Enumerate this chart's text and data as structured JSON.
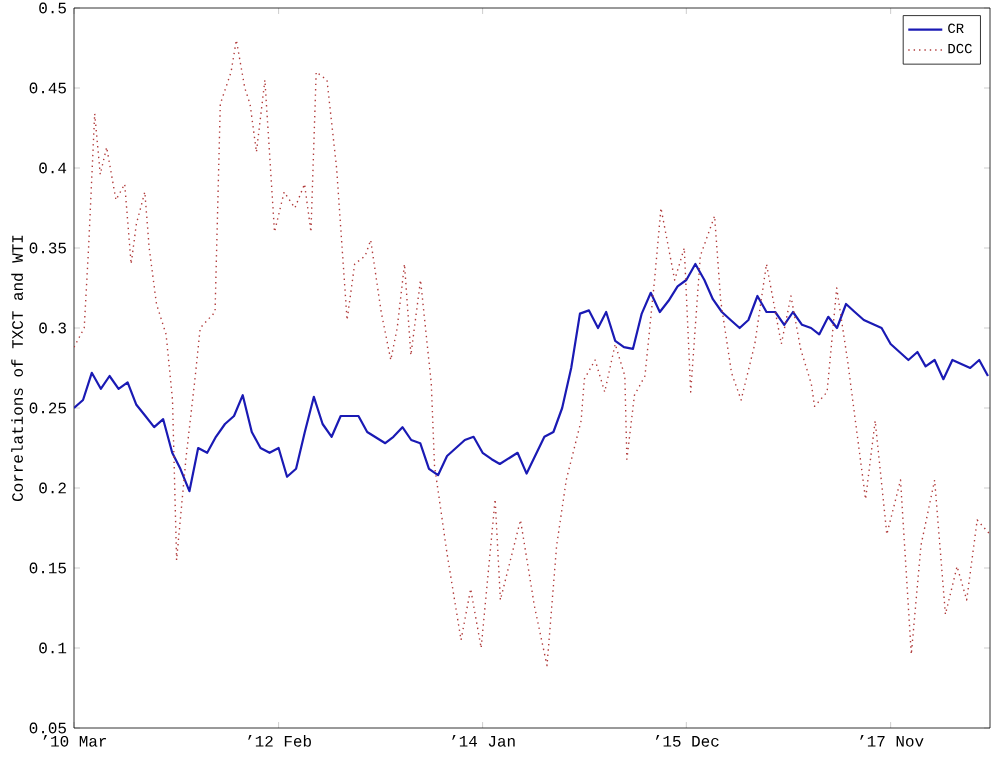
{
  "chart_data": {
    "type": "line",
    "ylabel": "Correlations of TXCT and WTI",
    "xlim": [
      "2010-03-01",
      "2018-10-08"
    ],
    "ylim": [
      0.05,
      0.5
    ],
    "xticks": [
      {
        "value": "2010-03-01",
        "label": "’10 Mar"
      },
      {
        "value": "2012-02-01",
        "label": "’12 Feb"
      },
      {
        "value": "2014-01-01",
        "label": "’14 Jan"
      },
      {
        "value": "2015-12-01",
        "label": "’15 Dec"
      },
      {
        "value": "2017-11-01",
        "label": "’17 Nov"
      }
    ],
    "yticks": [
      0.05,
      0.1,
      0.15,
      0.2,
      0.25,
      0.3,
      0.35,
      0.4,
      0.45,
      0.5
    ],
    "grid": false,
    "legend": "top right",
    "marker": "none",
    "series": [
      {
        "name": "CR",
        "color": "#1a1ab4",
        "line_style": "solid",
        "x": [
          "2010-03",
          "2010-04",
          "2010-05",
          "2010-06",
          "2010-07",
          "2010-08",
          "2010-09",
          "2010-10",
          "2010-11",
          "2010-12",
          "2011-01",
          "2011-02",
          "2011-03",
          "2011-04",
          "2011-05",
          "2011-06",
          "2011-07",
          "2011-08",
          "2011-09",
          "2011-10",
          "2011-11",
          "2011-12",
          "2012-01",
          "2012-02",
          "2012-03",
          "2012-04",
          "2012-05",
          "2012-06",
          "2012-07",
          "2012-08",
          "2012-09",
          "2012-11",
          "2012-12",
          "2013-02",
          "2013-03",
          "2013-04",
          "2013-05",
          "2013-06",
          "2013-07",
          "2013-08",
          "2013-09",
          "2013-11",
          "2013-12",
          "2014-01",
          "2014-02",
          "2014-03",
          "2014-05",
          "2014-06",
          "2014-08",
          "2014-09",
          "2014-10",
          "2014-11",
          "2014-12",
          "2015-01",
          "2015-02",
          "2015-03",
          "2015-04",
          "2015-05",
          "2015-06",
          "2015-07",
          "2015-08",
          "2015-09",
          "2015-10",
          "2015-11",
          "2015-12",
          "2016-01",
          "2016-02",
          "2016-03",
          "2016-04",
          "2016-05",
          "2016-06",
          "2016-07",
          "2016-08",
          "2016-09",
          "2016-10",
          "2016-11",
          "2016-12",
          "2017-01",
          "2017-02",
          "2017-03",
          "2017-04",
          "2017-05",
          "2017-06",
          "2017-07",
          "2017-08",
          "2017-10",
          "2017-11",
          "2018-01",
          "2018-02",
          "2018-03",
          "2018-04",
          "2018-05",
          "2018-06",
          "2018-08",
          "2018-09",
          "2018-10"
        ],
        "values": [
          0.25,
          0.255,
          0.272,
          0.262,
          0.27,
          0.262,
          0.266,
          0.252,
          0.245,
          0.238,
          0.243,
          0.222,
          0.212,
          0.198,
          0.225,
          0.222,
          0.232,
          0.24,
          0.245,
          0.258,
          0.235,
          0.225,
          0.222,
          0.225,
          0.207,
          0.212,
          0.235,
          0.257,
          0.24,
          0.232,
          0.245,
          0.245,
          0.235,
          0.228,
          0.232,
          0.238,
          0.23,
          0.228,
          0.212,
          0.208,
          0.22,
          0.23,
          0.232,
          0.222,
          0.218,
          0.215,
          0.222,
          0.209,
          0.232,
          0.235,
          0.25,
          0.275,
          0.309,
          0.311,
          0.3,
          0.31,
          0.292,
          0.288,
          0.287,
          0.309,
          0.322,
          0.31,
          0.317,
          0.326,
          0.33,
          0.34,
          0.33,
          0.318,
          0.31,
          0.305,
          0.3,
          0.305,
          0.32,
          0.31,
          0.31,
          0.302,
          0.31,
          0.302,
          0.3,
          0.296,
          0.307,
          0.3,
          0.315,
          0.31,
          0.305,
          0.3,
          0.29,
          0.28,
          0.285,
          0.276,
          0.28,
          0.268,
          0.28,
          0.275,
          0.28,
          0.27
        ]
      },
      {
        "name": "DCC",
        "color": "#b03a3a",
        "line_style": "dotted",
        "x": [
          "2010-03-01",
          "2010-04-05",
          "2010-04-20",
          "2010-05-11",
          "2010-05-30",
          "2010-06-21",
          "2010-07-23",
          "2010-08-22",
          "2010-09-13",
          "2010-10-01",
          "2010-10-30",
          "2010-11-14",
          "2010-12-09",
          "2011-01-11",
          "2011-02-02",
          "2011-02-16",
          "2011-03-21",
          "2011-04-20",
          "2011-05-08",
          "2011-06-28",
          "2011-07-16",
          "2011-08-22",
          "2011-09-09",
          "2011-10-08",
          "2011-10-26",
          "2011-11-17",
          "2011-12-16",
          "2012-01-18",
          "2012-02-20",
          "2012-03-28",
          "2012-04-30",
          "2012-05-22",
          "2012-06-09",
          "2012-07-16",
          "2012-08-18",
          "2012-09-23",
          "2012-10-19",
          "2012-11-24",
          "2012-12-13",
          "2013-01-18",
          "2013-02-20",
          "2013-03-14",
          "2013-04-08",
          "2013-04-30",
          "2013-06-02",
          "2013-07-09",
          "2013-07-20",
          "2013-09-01",
          "2013-10-19",
          "2013-11-21",
          "2013-12-27",
          "2014-02-13",
          "2014-03-03",
          "2014-05-11",
          "2014-06-28",
          "2014-08-10",
          "2014-09-12",
          "2014-10-15",
          "2014-12-05",
          "2014-12-16",
          "2015-01-22",
          "2015-02-24",
          "2015-04-01",
          "2015-05-04",
          "2015-05-11",
          "2015-06-06",
          "2015-07-12",
          "2015-08-14",
          "2015-09-05",
          "2015-10-22",
          "2015-11-24",
          "2015-12-16",
          "2016-01-18",
          "2016-03-07",
          "2016-03-28",
          "2016-05-04",
          "2016-06-06",
          "2016-07-23",
          "2016-09-01",
          "2016-10-22",
          "2016-11-24",
          "2016-12-27",
          "2017-02-02",
          "2017-02-13",
          "2017-03-28",
          "2017-04-30",
          "2017-06-06",
          "2017-08-07",
          "2017-09-09",
          "2017-10-19",
          "2017-12-05",
          "2018-01-11",
          "2018-02-13",
          "2018-04-01",
          "2018-05-08",
          "2018-06-17",
          "2018-07-20",
          "2018-08-25",
          "2018-10-08"
        ],
        "values": [
          0.288,
          0.3,
          0.35,
          0.434,
          0.396,
          0.413,
          0.38,
          0.39,
          0.34,
          0.365,
          0.385,
          0.35,
          0.315,
          0.296,
          0.255,
          0.155,
          0.22,
          0.268,
          0.3,
          0.31,
          0.44,
          0.46,
          0.48,
          0.45,
          0.44,
          0.41,
          0.455,
          0.36,
          0.385,
          0.375,
          0.39,
          0.36,
          0.46,
          0.455,
          0.4,
          0.305,
          0.34,
          0.345,
          0.355,
          0.31,
          0.28,
          0.3,
          0.34,
          0.283,
          0.33,
          0.265,
          0.214,
          0.159,
          0.105,
          0.137,
          0.1,
          0.193,
          0.13,
          0.18,
          0.126,
          0.089,
          0.164,
          0.205,
          0.242,
          0.268,
          0.28,
          0.26,
          0.29,
          0.27,
          0.218,
          0.258,
          0.27,
          0.33,
          0.375,
          0.33,
          0.35,
          0.26,
          0.345,
          0.37,
          0.317,
          0.272,
          0.255,
          0.29,
          0.34,
          0.29,
          0.32,
          0.287,
          0.265,
          0.251,
          0.26,
          0.325,
          0.28,
          0.193,
          0.242,
          0.171,
          0.205,
          0.096,
          0.164,
          0.205,
          0.121,
          0.151,
          0.13,
          0.18,
          0.171
        ]
      }
    ]
  }
}
